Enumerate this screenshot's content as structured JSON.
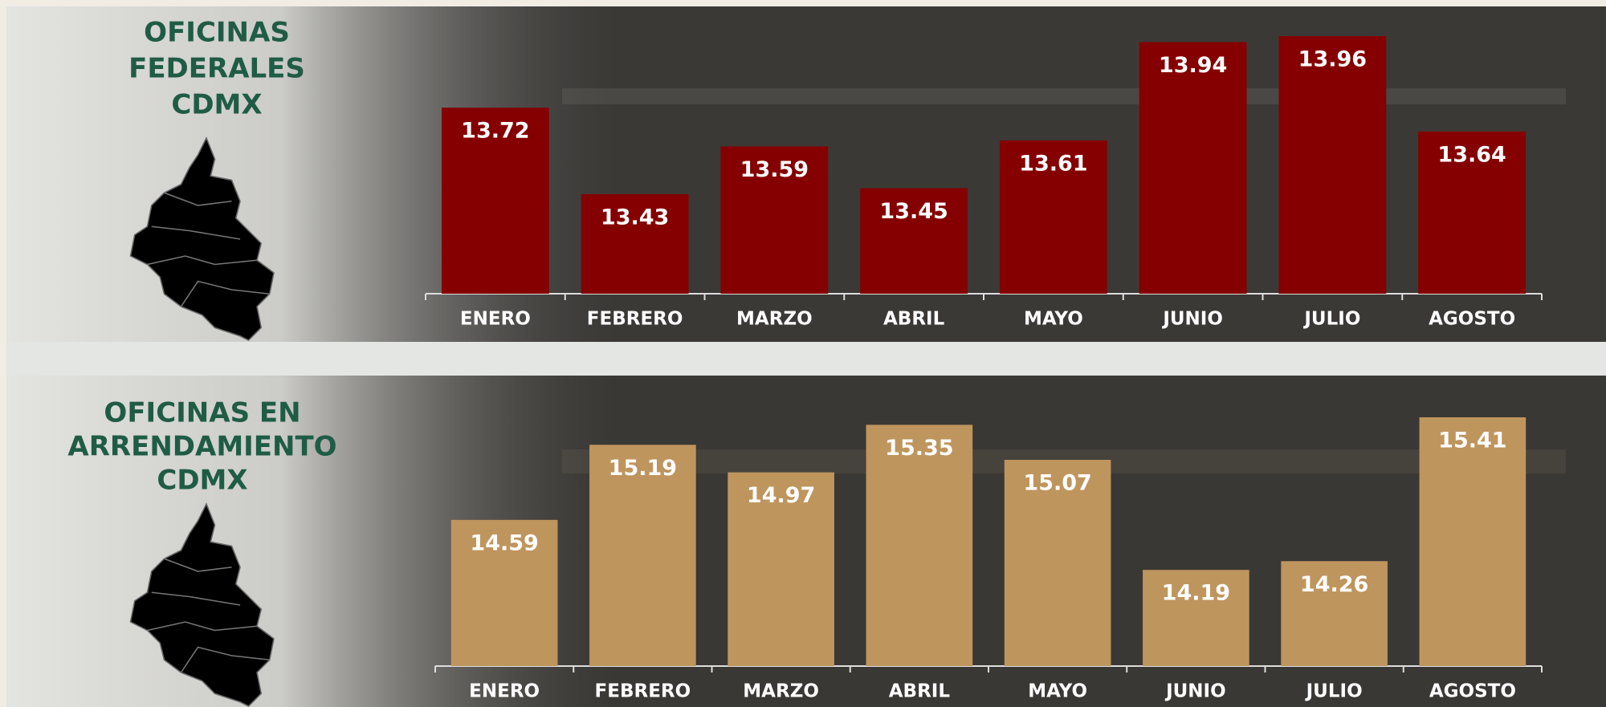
{
  "chart_data": [
    {
      "type": "bar",
      "title": [
        "OFICINAS",
        "FEDERALES",
        "CDMX"
      ],
      "categories": [
        "ENERO",
        "FEBRERO",
        "MARZO",
        "ABRIL",
        "MAYO",
        "JUNIO",
        "JULIO",
        "AGOSTO"
      ],
      "values": [
        13.72,
        13.43,
        13.59,
        13.45,
        13.61,
        13.94,
        13.96,
        13.64
      ],
      "color": "#850000"
    },
    {
      "type": "bar",
      "title": [
        "OFICINAS EN",
        "ARRENDAMIENTO",
        "CDMX"
      ],
      "categories": [
        "ENERO",
        "FEBRERO",
        "MARZO",
        "ABRIL",
        "MAYO",
        "JUNIO",
        "JULIO",
        "AGOSTO"
      ],
      "values": [
        14.59,
        15.19,
        14.97,
        15.35,
        15.07,
        14.19,
        14.26,
        15.41
      ],
      "color": "#bf955e"
    }
  ]
}
